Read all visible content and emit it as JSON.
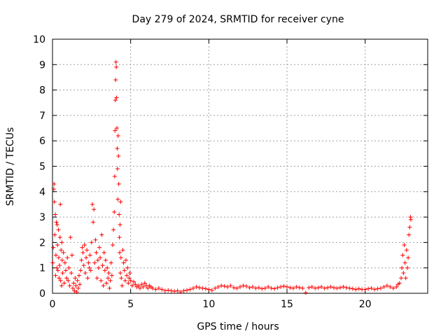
{
  "chart_data": {
    "type": "scatter",
    "title": "Day 279 of 2024, SRMTID for receiver cyne",
    "xlabel": "GPS time / hours",
    "ylabel": "SRMTID / TECUs",
    "xlim": [
      0,
      24
    ],
    "ylim": [
      0,
      10
    ],
    "xticks": [
      0,
      5,
      10,
      15,
      20
    ],
    "yticks": [
      0,
      1,
      2,
      3,
      4,
      5,
      6,
      7,
      8,
      9,
      10
    ],
    "grid": true,
    "marker": "+",
    "series": [
      {
        "name": "SRMTID",
        "color": "#ff0000",
        "points": [
          [
            0.02,
            1.2
          ],
          [
            0.05,
            1.8
          ],
          [
            0.08,
            4.1
          ],
          [
            0.1,
            4.3
          ],
          [
            0.12,
            3.6
          ],
          [
            0.15,
            2.3
          ],
          [
            0.18,
            3.1
          ],
          [
            0.2,
            0.7
          ],
          [
            0.22,
            1.5
          ],
          [
            0.25,
            2.8
          ],
          [
            0.28,
            1.0
          ],
          [
            0.3,
            2.7
          ],
          [
            0.32,
            1.9
          ],
          [
            0.35,
            0.9
          ],
          [
            0.38,
            2.5
          ],
          [
            0.4,
            1.4
          ],
          [
            0.42,
            0.6
          ],
          [
            0.45,
            1.1
          ],
          [
            0.48,
            2.2
          ],
          [
            0.5,
            3.5
          ],
          [
            0.52,
            0.5
          ],
          [
            0.55,
            1.7
          ],
          [
            0.58,
            0.3
          ],
          [
            0.6,
            2.0
          ],
          [
            0.62,
            1.3
          ],
          [
            0.65,
            0.8
          ],
          [
            0.7,
            1.6
          ],
          [
            0.75,
            0.4
          ],
          [
            0.8,
            1.2
          ],
          [
            0.85,
            0.9
          ],
          [
            0.9,
            0.6
          ],
          [
            0.95,
            1.4
          ],
          [
            1.0,
            0.5
          ],
          [
            1.05,
            1.0
          ],
          [
            1.1,
            0.3
          ],
          [
            1.15,
            2.2
          ],
          [
            1.2,
            0.8
          ],
          [
            1.25,
            1.5
          ],
          [
            1.3,
            0.2
          ],
          [
            1.35,
            0.4
          ],
          [
            1.4,
            0.1
          ],
          [
            1.45,
            0.6
          ],
          [
            1.5,
            0.3
          ],
          [
            1.55,
            0.05
          ],
          [
            1.6,
            0.5
          ],
          [
            1.65,
            0.2
          ],
          [
            1.7,
            0.7
          ],
          [
            1.75,
            0.35
          ],
          [
            1.8,
            0.9
          ],
          [
            1.85,
            1.3
          ],
          [
            1.9,
            1.8
          ],
          [
            1.95,
            1.6
          ],
          [
            2.0,
            1.1
          ],
          [
            2.05,
            1.9
          ],
          [
            2.1,
            0.8
          ],
          [
            2.15,
            1.4
          ],
          [
            2.2,
            1.7
          ],
          [
            2.25,
            0.6
          ],
          [
            2.3,
            1.2
          ],
          [
            2.35,
            1.0
          ],
          [
            2.4,
            1.5
          ],
          [
            2.45,
            0.9
          ],
          [
            2.5,
            2.0
          ],
          [
            2.55,
            3.5
          ],
          [
            2.6,
            2.8
          ],
          [
            2.65,
            3.3
          ],
          [
            2.7,
            1.2
          ],
          [
            2.75,
            2.1
          ],
          [
            2.8,
            1.6
          ],
          [
            2.85,
            0.6
          ],
          [
            2.9,
            1.3
          ],
          [
            2.95,
            1.0
          ],
          [
            3.0,
            1.8
          ],
          [
            3.05,
            1.4
          ],
          [
            3.1,
            0.5
          ],
          [
            3.15,
            2.3
          ],
          [
            3.2,
            1.1
          ],
          [
            3.25,
            0.3
          ],
          [
            3.3,
            1.6
          ],
          [
            3.35,
            0.9
          ],
          [
            3.4,
            1.3
          ],
          [
            3.45,
            0.4
          ],
          [
            3.5,
            1.0
          ],
          [
            3.55,
            0.6
          ],
          [
            3.6,
            0.8
          ],
          [
            3.65,
            0.2
          ],
          [
            3.7,
            0.5
          ],
          [
            3.75,
            1.2
          ],
          [
            3.8,
            0.7
          ],
          [
            3.85,
            1.9
          ],
          [
            3.9,
            2.5
          ],
          [
            3.95,
            3.2
          ],
          [
            3.98,
            4.6
          ],
          [
            4.0,
            6.4
          ],
          [
            4.02,
            7.6
          ],
          [
            4.04,
            8.4
          ],
          [
            4.06,
            9.1
          ],
          [
            4.08,
            8.9
          ],
          [
            4.1,
            7.7
          ],
          [
            4.12,
            6.5
          ],
          [
            4.14,
            5.7
          ],
          [
            4.16,
            4.9
          ],
          [
            4.18,
            3.7
          ],
          [
            4.2,
            6.2
          ],
          [
            4.22,
            5.4
          ],
          [
            4.24,
            4.3
          ],
          [
            4.26,
            3.1
          ],
          [
            4.28,
            2.2
          ],
          [
            4.3,
            1.6
          ],
          [
            4.32,
            2.7
          ],
          [
            4.34,
            0.8
          ],
          [
            4.36,
            3.6
          ],
          [
            4.38,
            1.4
          ],
          [
            4.4,
            0.6
          ],
          [
            4.45,
            0.3
          ],
          [
            4.5,
            1.7
          ],
          [
            4.55,
            1.2
          ],
          [
            4.6,
            0.9
          ],
          [
            4.65,
            0.5
          ],
          [
            4.7,
            1.3
          ],
          [
            4.75,
            0.7
          ],
          [
            4.8,
            1.0
          ],
          [
            4.85,
            0.4
          ],
          [
            4.9,
            0.6
          ],
          [
            4.95,
            0.8
          ],
          [
            5.0,
            0.5
          ],
          [
            5.1,
            0.3
          ],
          [
            5.2,
            0.45
          ],
          [
            5.3,
            0.35
          ],
          [
            5.4,
            0.25
          ],
          [
            5.5,
            0.3
          ],
          [
            5.6,
            0.2
          ],
          [
            5.7,
            0.35
          ],
          [
            5.8,
            0.25
          ],
          [
            5.9,
            0.4
          ],
          [
            6.0,
            0.3
          ],
          [
            6.1,
            0.2
          ],
          [
            6.2,
            0.3
          ],
          [
            6.3,
            0.25
          ],
          [
            6.4,
            0.2
          ],
          [
            6.6,
            0.15
          ],
          [
            6.8,
            0.2
          ],
          [
            7.0,
            0.15
          ],
          [
            7.2,
            0.1
          ],
          [
            7.4,
            0.12
          ],
          [
            7.6,
            0.1
          ],
          [
            7.8,
            0.08
          ],
          [
            8.0,
            0.1
          ],
          [
            8.2,
            0.05
          ],
          [
            8.4,
            0.1
          ],
          [
            8.6,
            0.12
          ],
          [
            8.8,
            0.15
          ],
          [
            9.0,
            0.2
          ],
          [
            9.2,
            0.25
          ],
          [
            9.4,
            0.22
          ],
          [
            9.6,
            0.2
          ],
          [
            9.8,
            0.18
          ],
          [
            10.0,
            0.15
          ],
          [
            10.2,
            0.12
          ],
          [
            10.4,
            0.2
          ],
          [
            10.6,
            0.25
          ],
          [
            10.8,
            0.3
          ],
          [
            11.0,
            0.28
          ],
          [
            11.2,
            0.25
          ],
          [
            11.4,
            0.3
          ],
          [
            11.6,
            0.22
          ],
          [
            11.8,
            0.2
          ],
          [
            12.0,
            0.25
          ],
          [
            12.2,
            0.3
          ],
          [
            12.4,
            0.28
          ],
          [
            12.6,
            0.22
          ],
          [
            12.8,
            0.25
          ],
          [
            13.0,
            0.2
          ],
          [
            13.2,
            0.22
          ],
          [
            13.4,
            0.18
          ],
          [
            13.6,
            0.2
          ],
          [
            13.8,
            0.25
          ],
          [
            14.0,
            0.2
          ],
          [
            14.2,
            0.18
          ],
          [
            14.4,
            0.22
          ],
          [
            14.6,
            0.25
          ],
          [
            14.8,
            0.28
          ],
          [
            15.0,
            0.25
          ],
          [
            15.2,
            0.22
          ],
          [
            15.4,
            0.2
          ],
          [
            15.6,
            0.25
          ],
          [
            15.8,
            0.22
          ],
          [
            16.0,
            0.2
          ],
          [
            16.2,
            0.02
          ],
          [
            16.4,
            0.22
          ],
          [
            16.6,
            0.25
          ],
          [
            16.8,
            0.2
          ],
          [
            17.0,
            0.22
          ],
          [
            17.2,
            0.25
          ],
          [
            17.4,
            0.2
          ],
          [
            17.6,
            0.22
          ],
          [
            17.8,
            0.25
          ],
          [
            18.0,
            0.22
          ],
          [
            18.2,
            0.2
          ],
          [
            18.4,
            0.22
          ],
          [
            18.6,
            0.25
          ],
          [
            18.8,
            0.22
          ],
          [
            19.0,
            0.2
          ],
          [
            19.2,
            0.18
          ],
          [
            19.4,
            0.15
          ],
          [
            19.6,
            0.18
          ],
          [
            19.8,
            0.15
          ],
          [
            20.0,
            0.15
          ],
          [
            20.2,
            0.18
          ],
          [
            20.4,
            0.2
          ],
          [
            20.6,
            0.15
          ],
          [
            20.8,
            0.18
          ],
          [
            21.0,
            0.2
          ],
          [
            21.2,
            0.25
          ],
          [
            21.4,
            0.3
          ],
          [
            21.6,
            0.25
          ],
          [
            21.8,
            0.2
          ],
          [
            22.0,
            0.25
          ],
          [
            22.1,
            0.35
          ],
          [
            22.2,
            0.4
          ],
          [
            22.3,
            0.6
          ],
          [
            22.35,
            1.0
          ],
          [
            22.4,
            1.5
          ],
          [
            22.45,
            0.8
          ],
          [
            22.5,
            1.9
          ],
          [
            22.55,
            1.2
          ],
          [
            22.6,
            0.6
          ],
          [
            22.65,
            1.7
          ],
          [
            22.7,
            1.0
          ],
          [
            22.75,
            1.4
          ],
          [
            22.8,
            2.3
          ],
          [
            22.85,
            2.6
          ],
          [
            22.9,
            3.0
          ],
          [
            22.92,
            2.9
          ]
        ]
      }
    ]
  }
}
